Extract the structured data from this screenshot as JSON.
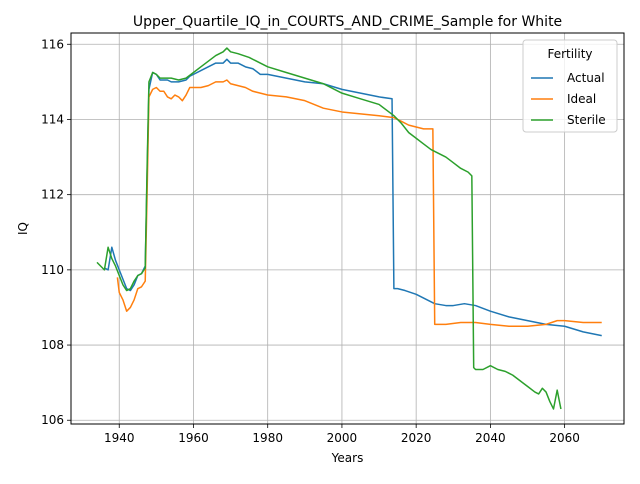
{
  "chart_data": {
    "type": "line",
    "title": "Upper_Quartile_IQ_in_COURTS_AND_CRIME_Sample for White",
    "xlabel": "Years",
    "ylabel": "IQ",
    "xlim": [
      1927,
      2076
    ],
    "ylim": [
      105.9,
      116.3
    ],
    "xticks": [
      1940,
      1960,
      1980,
      2000,
      2020,
      2040,
      2060
    ],
    "yticks": [
      106,
      108,
      110,
      112,
      114,
      116
    ],
    "grid": true,
    "legend": {
      "title": "Fertility",
      "placement": "top-right"
    },
    "series": [
      {
        "name": "Actual",
        "color": "#1f77b4",
        "points": [
          [
            1936,
            110.05
          ],
          [
            1937,
            110.0
          ],
          [
            1938,
            110.6
          ],
          [
            1939,
            110.25
          ],
          [
            1940,
            110.0
          ],
          [
            1941,
            109.75
          ],
          [
            1942,
            109.5
          ],
          [
            1943,
            109.45
          ],
          [
            1944,
            109.6
          ],
          [
            1945,
            109.85
          ],
          [
            1946,
            109.9
          ],
          [
            1947,
            110.1
          ],
          [
            1947.5,
            112.5
          ],
          [
            1948,
            114.8
          ],
          [
            1949,
            115.25
          ],
          [
            1950,
            115.2
          ],
          [
            1951,
            115.05
          ],
          [
            1952,
            115.05
          ],
          [
            1953,
            115.05
          ],
          [
            1954,
            115.0
          ],
          [
            1956,
            115.0
          ],
          [
            1958,
            115.05
          ],
          [
            1959,
            115.15
          ],
          [
            1960,
            115.2
          ],
          [
            1962,
            115.3
          ],
          [
            1964,
            115.4
          ],
          [
            1966,
            115.5
          ],
          [
            1968,
            115.5
          ],
          [
            1969,
            115.6
          ],
          [
            1970,
            115.5
          ],
          [
            1972,
            115.5
          ],
          [
            1974,
            115.4
          ],
          [
            1976,
            115.35
          ],
          [
            1978,
            115.2
          ],
          [
            1980,
            115.2
          ],
          [
            1985,
            115.1
          ],
          [
            1990,
            115.0
          ],
          [
            1995,
            114.95
          ],
          [
            2000,
            114.8
          ],
          [
            2005,
            114.7
          ],
          [
            2010,
            114.6
          ],
          [
            2013.5,
            114.55
          ],
          [
            2014,
            109.5
          ],
          [
            2015,
            109.5
          ],
          [
            2017,
            109.45
          ],
          [
            2020,
            109.35
          ],
          [
            2025,
            109.1
          ],
          [
            2028,
            109.05
          ],
          [
            2030,
            109.05
          ],
          [
            2033,
            109.1
          ],
          [
            2036,
            109.05
          ],
          [
            2040,
            108.9
          ],
          [
            2045,
            108.75
          ],
          [
            2050,
            108.65
          ],
          [
            2055,
            108.55
          ],
          [
            2060,
            108.5
          ],
          [
            2065,
            108.35
          ],
          [
            2070,
            108.25
          ]
        ]
      },
      {
        "name": "Ideal",
        "color": "#ff7f0e",
        "points": [
          [
            1939.5,
            109.8
          ],
          [
            1940,
            109.4
          ],
          [
            1941,
            109.2
          ],
          [
            1942,
            108.9
          ],
          [
            1943,
            109.0
          ],
          [
            1944,
            109.2
          ],
          [
            1945,
            109.5
          ],
          [
            1946,
            109.55
          ],
          [
            1947,
            109.7
          ],
          [
            1947.5,
            112.0
          ],
          [
            1948,
            114.6
          ],
          [
            1949,
            114.8
          ],
          [
            1950,
            114.85
          ],
          [
            1951,
            114.75
          ],
          [
            1952,
            114.75
          ],
          [
            1953,
            114.6
          ],
          [
            1954,
            114.55
          ],
          [
            1955,
            114.65
          ],
          [
            1956,
            114.6
          ],
          [
            1957,
            114.5
          ],
          [
            1958,
            114.65
          ],
          [
            1959,
            114.85
          ],
          [
            1960,
            114.85
          ],
          [
            1962,
            114.85
          ],
          [
            1964,
            114.9
          ],
          [
            1966,
            115.0
          ],
          [
            1968,
            115.0
          ],
          [
            1969,
            115.05
          ],
          [
            1970,
            114.95
          ],
          [
            1972,
            114.9
          ],
          [
            1974,
            114.85
          ],
          [
            1976,
            114.75
          ],
          [
            1978,
            114.7
          ],
          [
            1980,
            114.65
          ],
          [
            1985,
            114.6
          ],
          [
            1990,
            114.5
          ],
          [
            1995,
            114.3
          ],
          [
            2000,
            114.2
          ],
          [
            2005,
            114.15
          ],
          [
            2010,
            114.1
          ],
          [
            2014,
            114.05
          ],
          [
            2016,
            113.95
          ],
          [
            2018,
            113.85
          ],
          [
            2020,
            113.8
          ],
          [
            2022,
            113.75
          ],
          [
            2024.5,
            113.75
          ],
          [
            2025,
            108.55
          ],
          [
            2028,
            108.55
          ],
          [
            2032,
            108.6
          ],
          [
            2036,
            108.6
          ],
          [
            2040,
            108.55
          ],
          [
            2045,
            108.5
          ],
          [
            2050,
            108.5
          ],
          [
            2055,
            108.55
          ],
          [
            2058,
            108.65
          ],
          [
            2060,
            108.65
          ],
          [
            2065,
            108.6
          ],
          [
            2070,
            108.6
          ]
        ]
      },
      {
        "name": "Sterile",
        "color": "#2ca02c",
        "points": [
          [
            1934,
            110.2
          ],
          [
            1935,
            110.1
          ],
          [
            1936,
            110.0
          ],
          [
            1937,
            110.6
          ],
          [
            1938,
            110.3
          ],
          [
            1939,
            110.1
          ],
          [
            1940,
            109.85
          ],
          [
            1941,
            109.6
          ],
          [
            1942,
            109.45
          ],
          [
            1943,
            109.5
          ],
          [
            1944,
            109.7
          ],
          [
            1945,
            109.85
          ],
          [
            1946,
            109.9
          ],
          [
            1947,
            110.05
          ],
          [
            1947.5,
            112.7
          ],
          [
            1948,
            115.0
          ],
          [
            1949,
            115.25
          ],
          [
            1950,
            115.2
          ],
          [
            1951,
            115.1
          ],
          [
            1952,
            115.1
          ],
          [
            1954,
            115.1
          ],
          [
            1956,
            115.05
          ],
          [
            1958,
            115.1
          ],
          [
            1960,
            115.25
          ],
          [
            1962,
            115.4
          ],
          [
            1964,
            115.55
          ],
          [
            1966,
            115.7
          ],
          [
            1968,
            115.8
          ],
          [
            1969,
            115.9
          ],
          [
            1970,
            115.8
          ],
          [
            1972,
            115.75
          ],
          [
            1975,
            115.65
          ],
          [
            1978,
            115.5
          ],
          [
            1980,
            115.4
          ],
          [
            1985,
            115.25
          ],
          [
            1990,
            115.1
          ],
          [
            1995,
            114.95
          ],
          [
            2000,
            114.7
          ],
          [
            2005,
            114.55
          ],
          [
            2010,
            114.4
          ],
          [
            2014,
            114.1
          ],
          [
            2016,
            113.9
          ],
          [
            2018,
            113.65
          ],
          [
            2020,
            113.5
          ],
          [
            2022,
            113.35
          ],
          [
            2024,
            113.2
          ],
          [
            2026,
            113.1
          ],
          [
            2028,
            113.0
          ],
          [
            2030,
            112.85
          ],
          [
            2032,
            112.7
          ],
          [
            2034,
            112.6
          ],
          [
            2035,
            112.5
          ],
          [
            2035.5,
            107.4
          ],
          [
            2036,
            107.35
          ],
          [
            2038,
            107.35
          ],
          [
            2040,
            107.45
          ],
          [
            2042,
            107.35
          ],
          [
            2044,
            107.3
          ],
          [
            2046,
            107.2
          ],
          [
            2048,
            107.05
          ],
          [
            2050,
            106.9
          ],
          [
            2052,
            106.75
          ],
          [
            2053,
            106.7
          ],
          [
            2054,
            106.85
          ],
          [
            2055,
            106.75
          ],
          [
            2056,
            106.5
          ],
          [
            2057,
            106.3
          ],
          [
            2058,
            106.8
          ],
          [
            2059,
            106.3
          ]
        ]
      }
    ]
  }
}
